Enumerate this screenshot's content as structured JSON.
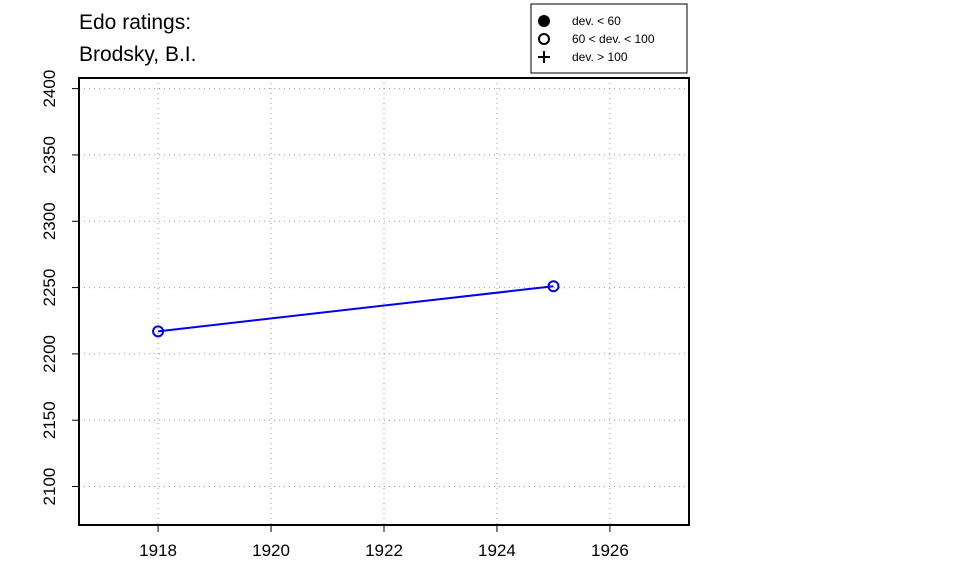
{
  "chart_data": {
    "type": "line",
    "title": [
      "Edo ratings:",
      "Brodsky, B.I."
    ],
    "x": [
      1918,
      1925
    ],
    "series": [
      {
        "color": "#0000ee",
        "marker": "open-circle",
        "values": [
          2217,
          2251
        ]
      }
    ],
    "xlim": [
      1916.6,
      1927.4
    ],
    "ylim": [
      2071,
      2408
    ],
    "xticks": [
      1918,
      1920,
      1922,
      1924,
      1926
    ],
    "yticks": [
      2100,
      2150,
      2200,
      2250,
      2300,
      2350,
      2400
    ],
    "grid": true,
    "legend": {
      "position": "top-right",
      "entries": [
        {
          "marker": "filled-circle",
          "label": "dev. < 60"
        },
        {
          "marker": "open-circle",
          "label": "60 < dev. < 100"
        },
        {
          "marker": "plus",
          "label": "dev. > 100"
        }
      ]
    }
  }
}
